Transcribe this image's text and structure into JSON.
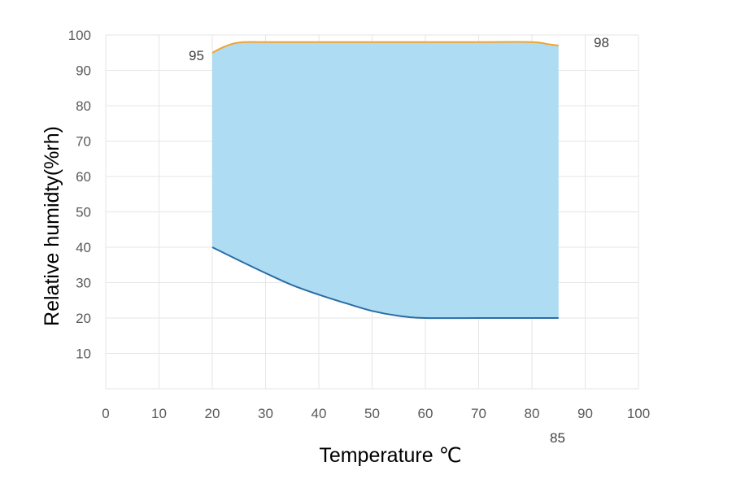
{
  "chart_data": {
    "type": "area",
    "title": "",
    "xlabel": "Temperature ℃",
    "ylabel": "Relative humidty(%rh)",
    "xlim": [
      0,
      100
    ],
    "ylim": [
      0,
      100
    ],
    "x_ticks": [
      "0",
      "10",
      "20",
      "30",
      "40",
      "50",
      "60",
      "70",
      "80",
      "90",
      "100"
    ],
    "y_ticks": [
      "10",
      "20",
      "30",
      "40",
      "50",
      "60",
      "70",
      "80",
      "90",
      "100"
    ],
    "grid": true,
    "legend": "none",
    "series": [
      {
        "x": [
          20,
          22,
          24,
          26,
          30,
          40,
          50,
          60,
          70,
          80,
          83,
          85
        ],
        "values": [
          95,
          96.5,
          97.6,
          98,
          98,
          98,
          98,
          98,
          98,
          98,
          97.4,
          97
        ],
        "color": "#f0a430"
      },
      {
        "x": [
          20,
          25,
          30,
          35,
          40,
          45,
          50,
          55,
          60,
          70,
          80,
          85
        ],
        "values": [
          40,
          36.3,
          32.7,
          29.3,
          26.6,
          24.2,
          22.0,
          20.6,
          20,
          20,
          20,
          20
        ],
        "color": "#2a6ca8"
      }
    ],
    "fill_color": "#aedcf2",
    "annotations": [
      "95",
      "98",
      "85"
    ]
  }
}
